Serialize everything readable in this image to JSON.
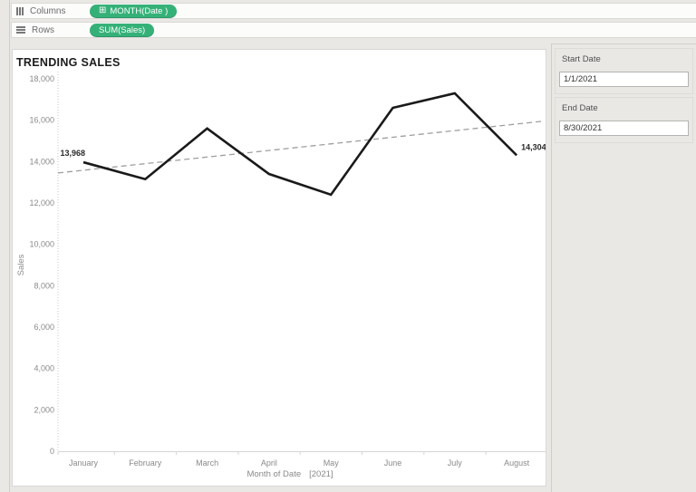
{
  "shelf_bar": {
    "columns": {
      "label": "Columns",
      "pill_expand_icon": "⊞",
      "pill": "MONTH(Date )"
    },
    "rows": {
      "label": "Rows",
      "pill": "SUM(Sales)"
    }
  },
  "chart": {
    "title": "TRENDING SALES"
  },
  "chart_data": {
    "type": "line",
    "title": "TRENDING SALES",
    "categories": [
      "January",
      "February",
      "March",
      "April",
      "May",
      "June",
      "July",
      "August"
    ],
    "values": [
      13968,
      13150,
      15600,
      13400,
      12400,
      16600,
      17300,
      14304
    ],
    "point_labels": {
      "first": "13,968",
      "last": "14,304"
    },
    "trend_line": {
      "style": "dashed",
      "start_value": 13450,
      "end_value": 15950
    },
    "xlabel": "Month of Date",
    "xlabel_year": "[2021]",
    "ylabel": "Sales",
    "ylim": [
      0,
      18000
    ],
    "yticks": [
      {
        "value": 18000,
        "label": "18,000"
      },
      {
        "value": 16000,
        "label": "16,000"
      },
      {
        "value": 14000,
        "label": "14,000"
      },
      {
        "value": 12000,
        "label": "12,000"
      },
      {
        "value": 10000,
        "label": "10,000"
      },
      {
        "value": 8000,
        "label": "8,000"
      },
      {
        "value": 6000,
        "label": "6,000"
      },
      {
        "value": 4000,
        "label": "4,000"
      },
      {
        "value": 2000,
        "label": "2,000"
      },
      {
        "value": 0,
        "label": "0"
      }
    ],
    "grid": false,
    "legend": "none"
  },
  "parameters": {
    "start_date": {
      "label": "Start Date",
      "value": "1/1/2021"
    },
    "end_date": {
      "label": "End Date",
      "value": "8/30/2021"
    }
  },
  "colors": {
    "pill_green": "#35b178",
    "series_line": "#1a1a1a",
    "trend_line": "#9e9e9e",
    "axis_line": "#d6d5d3",
    "axis_dotted": "#c9c8c6",
    "axis_text": "#8a8a8a",
    "data_label_text": "#2a2a2a"
  }
}
